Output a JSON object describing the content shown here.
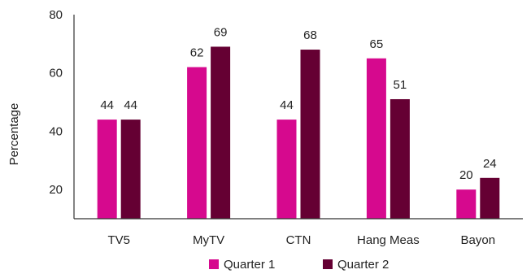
{
  "chart_data": {
    "type": "bar",
    "categories": [
      "TV5",
      "MyTV",
      "CTN",
      "Hang Meas",
      "Bayon"
    ],
    "series": [
      {
        "name": "Quarter 1",
        "values": [
          44,
          62,
          44,
          65,
          20
        ],
        "color": "#D6098E"
      },
      {
        "name": "Quarter 2",
        "values": [
          44,
          69,
          68,
          51,
          24
        ],
        "color": "#650033"
      }
    ],
    "title": "",
    "xlabel": "",
    "ylabel": "Percentage",
    "ylim": [
      10,
      80
    ],
    "yticks": [
      20,
      40,
      60,
      80
    ],
    "grid": false,
    "legend": "bottom-center",
    "data_labels": true
  }
}
